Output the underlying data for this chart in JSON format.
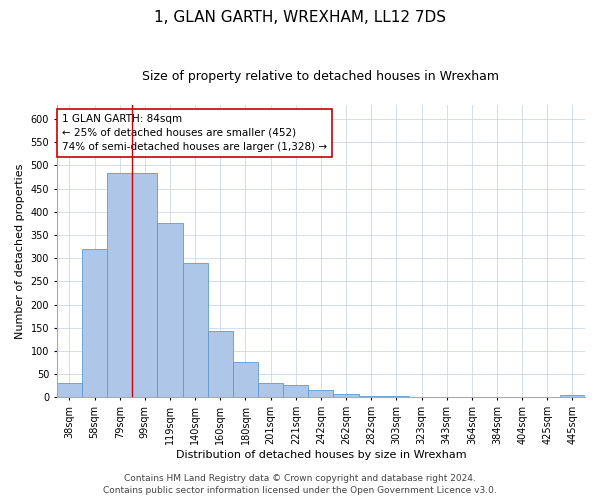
{
  "title": "1, GLAN GARTH, WREXHAM, LL12 7DS",
  "subtitle": "Size of property relative to detached houses in Wrexham",
  "xlabel": "Distribution of detached houses by size in Wrexham",
  "ylabel": "Number of detached properties",
  "categories": [
    "38sqm",
    "58sqm",
    "79sqm",
    "99sqm",
    "119sqm",
    "140sqm",
    "160sqm",
    "180sqm",
    "201sqm",
    "221sqm",
    "242sqm",
    "262sqm",
    "282sqm",
    "303sqm",
    "323sqm",
    "343sqm",
    "364sqm",
    "384sqm",
    "404sqm",
    "425sqm",
    "445sqm"
  ],
  "values": [
    32,
    320,
    483,
    483,
    375,
    290,
    143,
    77,
    32,
    27,
    17,
    8,
    4,
    4,
    2,
    1,
    1,
    0,
    0,
    0,
    5
  ],
  "bar_color": "#aec6e8",
  "bar_edge_color": "#5b9bd5",
  "vline_x": 2.5,
  "vline_color": "#cc0000",
  "annotation_text": "1 GLAN GARTH: 84sqm\n← 25% of detached houses are smaller (452)\n74% of semi-detached houses are larger (1,328) →",
  "annotation_box_color": "#ffffff",
  "annotation_box_edge": "#cc0000",
  "ylim": [
    0,
    630
  ],
  "yticks": [
    0,
    50,
    100,
    150,
    200,
    250,
    300,
    350,
    400,
    450,
    500,
    550,
    600
  ],
  "footer_line1": "Contains HM Land Registry data © Crown copyright and database right 2024.",
  "footer_line2": "Contains public sector information licensed under the Open Government Licence v3.0.",
  "background_color": "#ffffff",
  "grid_color": "#d0d8e8",
  "title_fontsize": 11,
  "subtitle_fontsize": 9,
  "axis_label_fontsize": 8,
  "tick_fontsize": 7,
  "annotation_fontsize": 7.5,
  "footer_fontsize": 6.5
}
